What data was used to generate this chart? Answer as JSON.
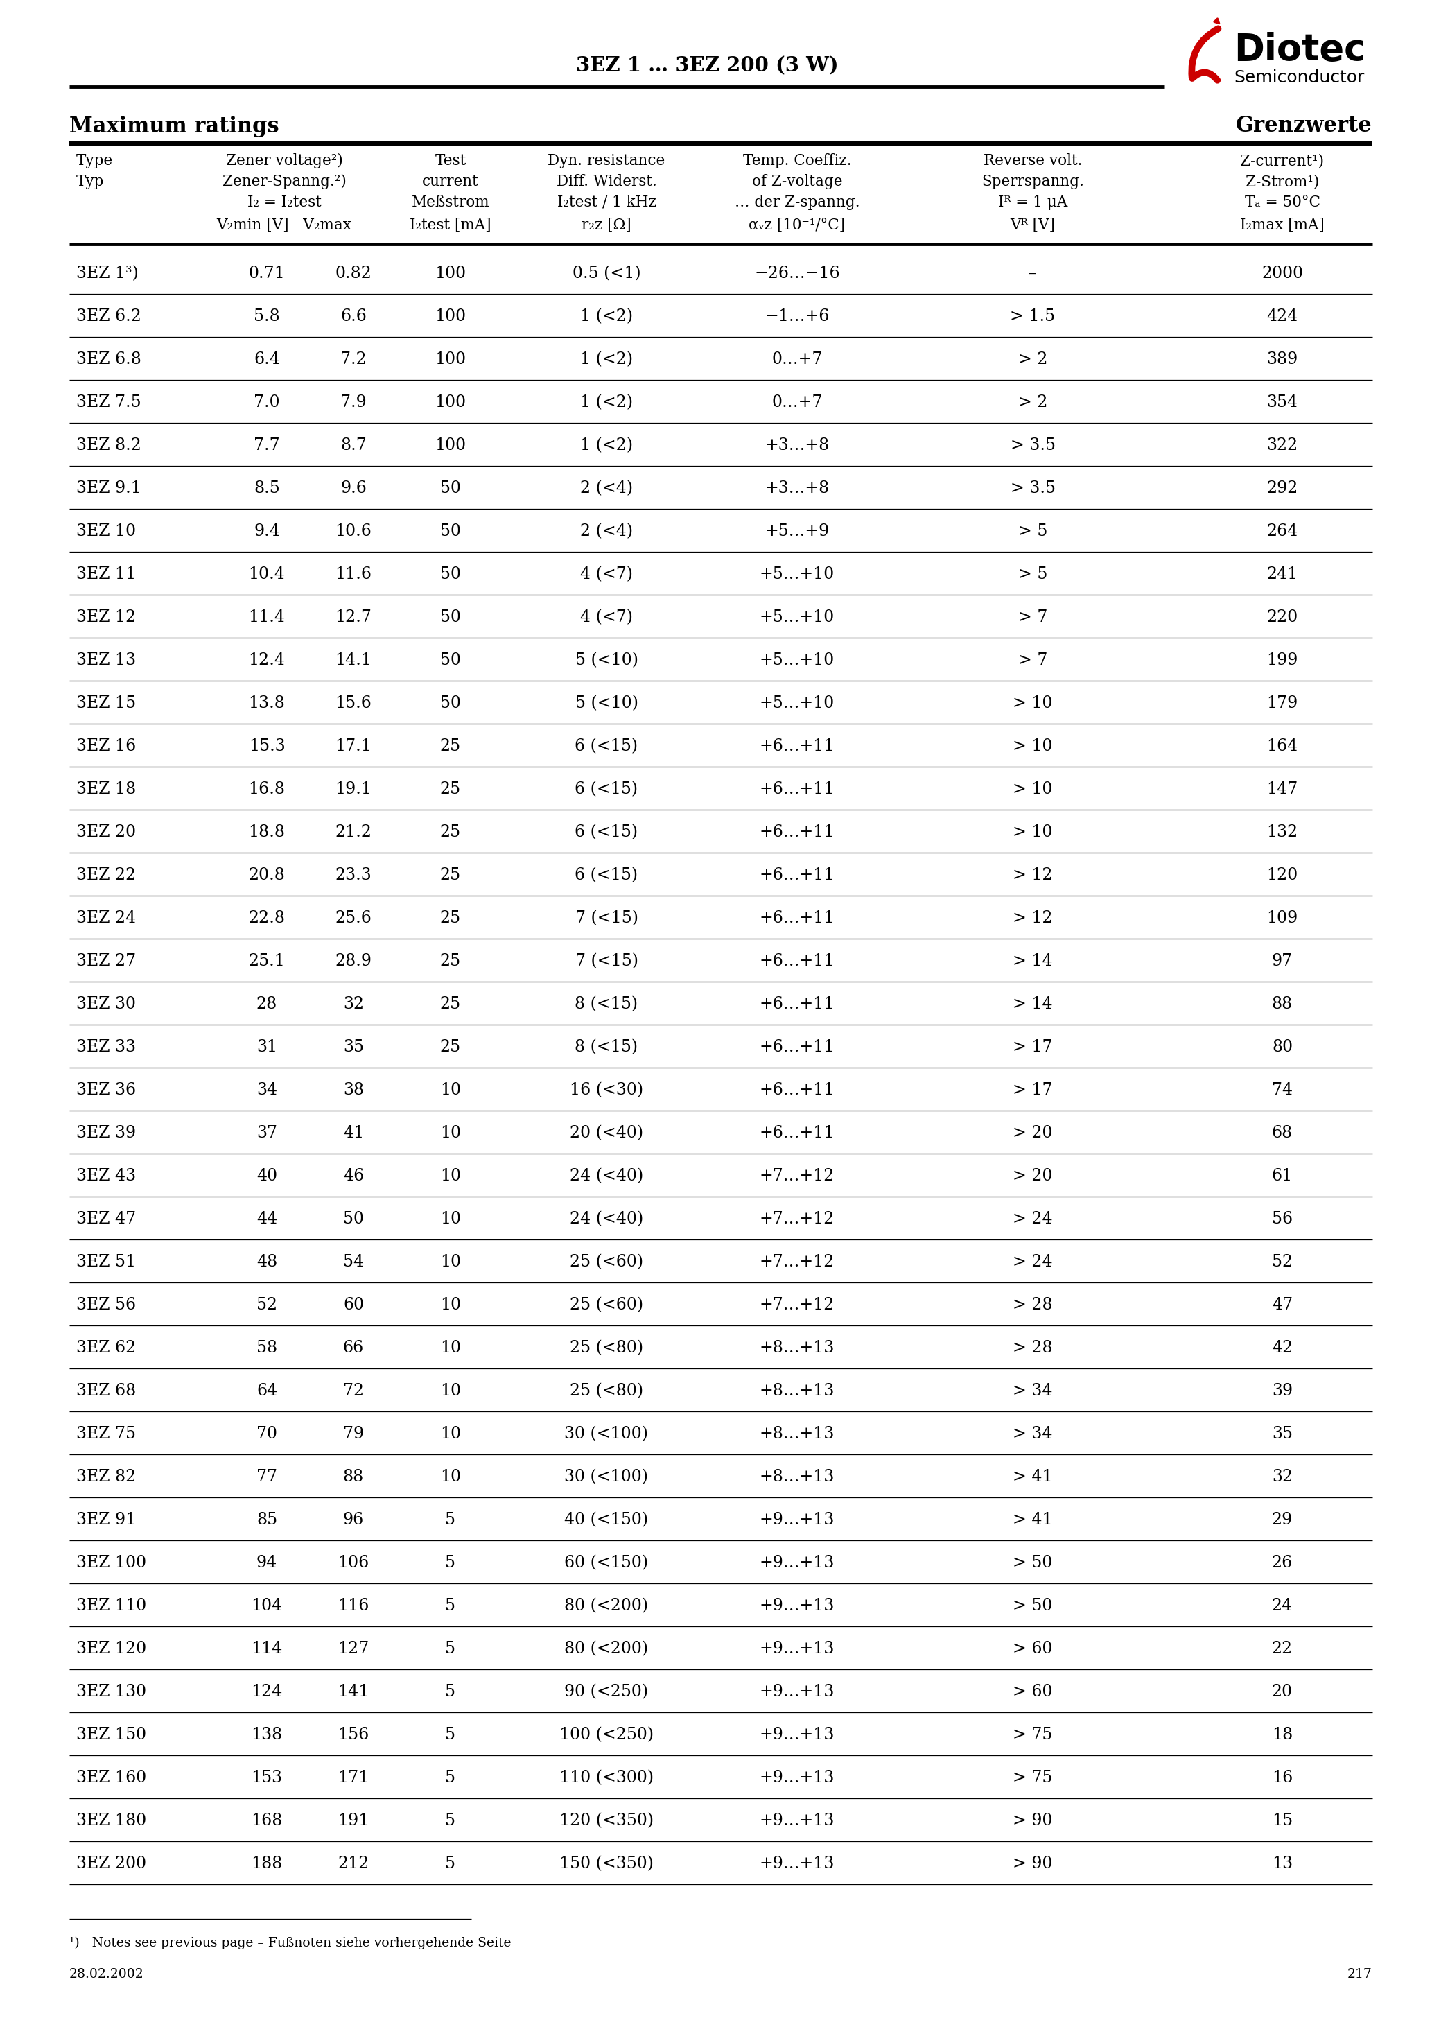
{
  "title": "3EZ 1 … 3EZ 200 (3 W)",
  "max_ratings_left": "Maximum ratings",
  "max_ratings_right": "Grenzwerte",
  "rows": [
    [
      "3EZ 1³)",
      "0.71",
      "0.82",
      "100",
      "0.5 (<1)",
      "−26…−16",
      "–",
      "2000"
    ],
    [
      "3EZ 6.2",
      "5.8",
      "6.6",
      "100",
      "1 (<2)",
      "−1…+6",
      "> 1.5",
      "424"
    ],
    [
      "3EZ 6.8",
      "6.4",
      "7.2",
      "100",
      "1 (<2)",
      "0…+7",
      "> 2",
      "389"
    ],
    [
      "3EZ 7.5",
      "7.0",
      "7.9",
      "100",
      "1 (<2)",
      "0…+7",
      "> 2",
      "354"
    ],
    [
      "3EZ 8.2",
      "7.7",
      "8.7",
      "100",
      "1 (<2)",
      "+3…+8",
      "> 3.5",
      "322"
    ],
    [
      "3EZ 9.1",
      "8.5",
      "9.6",
      "50",
      "2 (<4)",
      "+3…+8",
      "> 3.5",
      "292"
    ],
    [
      "3EZ 10",
      "9.4",
      "10.6",
      "50",
      "2 (<4)",
      "+5…+9",
      "> 5",
      "264"
    ],
    [
      "3EZ 11",
      "10.4",
      "11.6",
      "50",
      "4 (<7)",
      "+5…+10",
      "> 5",
      "241"
    ],
    [
      "3EZ 12",
      "11.4",
      "12.7",
      "50",
      "4 (<7)",
      "+5…+10",
      "> 7",
      "220"
    ],
    [
      "3EZ 13",
      "12.4",
      "14.1",
      "50",
      "5 (<10)",
      "+5…+10",
      "> 7",
      "199"
    ],
    [
      "3EZ 15",
      "13.8",
      "15.6",
      "50",
      "5 (<10)",
      "+5…+10",
      "> 10",
      "179"
    ],
    [
      "3EZ 16",
      "15.3",
      "17.1",
      "25",
      "6 (<15)",
      "+6…+11",
      "> 10",
      "164"
    ],
    [
      "3EZ 18",
      "16.8",
      "19.1",
      "25",
      "6 (<15)",
      "+6…+11",
      "> 10",
      "147"
    ],
    [
      "3EZ 20",
      "18.8",
      "21.2",
      "25",
      "6 (<15)",
      "+6…+11",
      "> 10",
      "132"
    ],
    [
      "3EZ 22",
      "20.8",
      "23.3",
      "25",
      "6 (<15)",
      "+6…+11",
      "> 12",
      "120"
    ],
    [
      "3EZ 24",
      "22.8",
      "25.6",
      "25",
      "7 (<15)",
      "+6…+11",
      "> 12",
      "109"
    ],
    [
      "3EZ 27",
      "25.1",
      "28.9",
      "25",
      "7 (<15)",
      "+6…+11",
      "> 14",
      "97"
    ],
    [
      "3EZ 30",
      "28",
      "32",
      "25",
      "8 (<15)",
      "+6…+11",
      "> 14",
      "88"
    ],
    [
      "3EZ 33",
      "31",
      "35",
      "25",
      "8 (<15)",
      "+6…+11",
      "> 17",
      "80"
    ],
    [
      "3EZ 36",
      "34",
      "38",
      "10",
      "16 (<30)",
      "+6…+11",
      "> 17",
      "74"
    ],
    [
      "3EZ 39",
      "37",
      "41",
      "10",
      "20 (<40)",
      "+6…+11",
      "> 20",
      "68"
    ],
    [
      "3EZ 43",
      "40",
      "46",
      "10",
      "24 (<40)",
      "+7…+12",
      "> 20",
      "61"
    ],
    [
      "3EZ 47",
      "44",
      "50",
      "10",
      "24 (<40)",
      "+7…+12",
      "> 24",
      "56"
    ],
    [
      "3EZ 51",
      "48",
      "54",
      "10",
      "25 (<60)",
      "+7…+12",
      "> 24",
      "52"
    ],
    [
      "3EZ 56",
      "52",
      "60",
      "10",
      "25 (<60)",
      "+7…+12",
      "> 28",
      "47"
    ],
    [
      "3EZ 62",
      "58",
      "66",
      "10",
      "25 (<80)",
      "+8…+13",
      "> 28",
      "42"
    ],
    [
      "3EZ 68",
      "64",
      "72",
      "10",
      "25 (<80)",
      "+8…+13",
      "> 34",
      "39"
    ],
    [
      "3EZ 75",
      "70",
      "79",
      "10",
      "30 (<100)",
      "+8…+13",
      "> 34",
      "35"
    ],
    [
      "3EZ 82",
      "77",
      "88",
      "10",
      "30 (<100)",
      "+8…+13",
      "> 41",
      "32"
    ],
    [
      "3EZ 91",
      "85",
      "96",
      "5",
      "40 (<150)",
      "+9…+13",
      "> 41",
      "29"
    ],
    [
      "3EZ 100",
      "94",
      "106",
      "5",
      "60 (<150)",
      "+9…+13",
      "> 50",
      "26"
    ],
    [
      "3EZ 110",
      "104",
      "116",
      "5",
      "80 (<200)",
      "+9…+13",
      "> 50",
      "24"
    ],
    [
      "3EZ 120",
      "114",
      "127",
      "5",
      "80 (<200)",
      "+9…+13",
      "> 60",
      "22"
    ],
    [
      "3EZ 130",
      "124",
      "141",
      "5",
      "90 (<250)",
      "+9…+13",
      "> 60",
      "20"
    ],
    [
      "3EZ 150",
      "138",
      "156",
      "5",
      "100 (<250)",
      "+9…+13",
      "> 75",
      "18"
    ],
    [
      "3EZ 160",
      "153",
      "171",
      "5",
      "110 (<300)",
      "+9…+13",
      "> 75",
      "16"
    ],
    [
      "3EZ 180",
      "168",
      "191",
      "5",
      "120 (<350)",
      "+9…+13",
      "> 90",
      "15"
    ],
    [
      "3EZ 200",
      "188",
      "212",
      "5",
      "150 (<350)",
      "+9…+13",
      "> 90",
      "13"
    ]
  ],
  "footnote": "¹)   Notes see previous page – Fußnoten siehe vorhergehende Seite",
  "date": "28.02.2002",
  "page": "217"
}
